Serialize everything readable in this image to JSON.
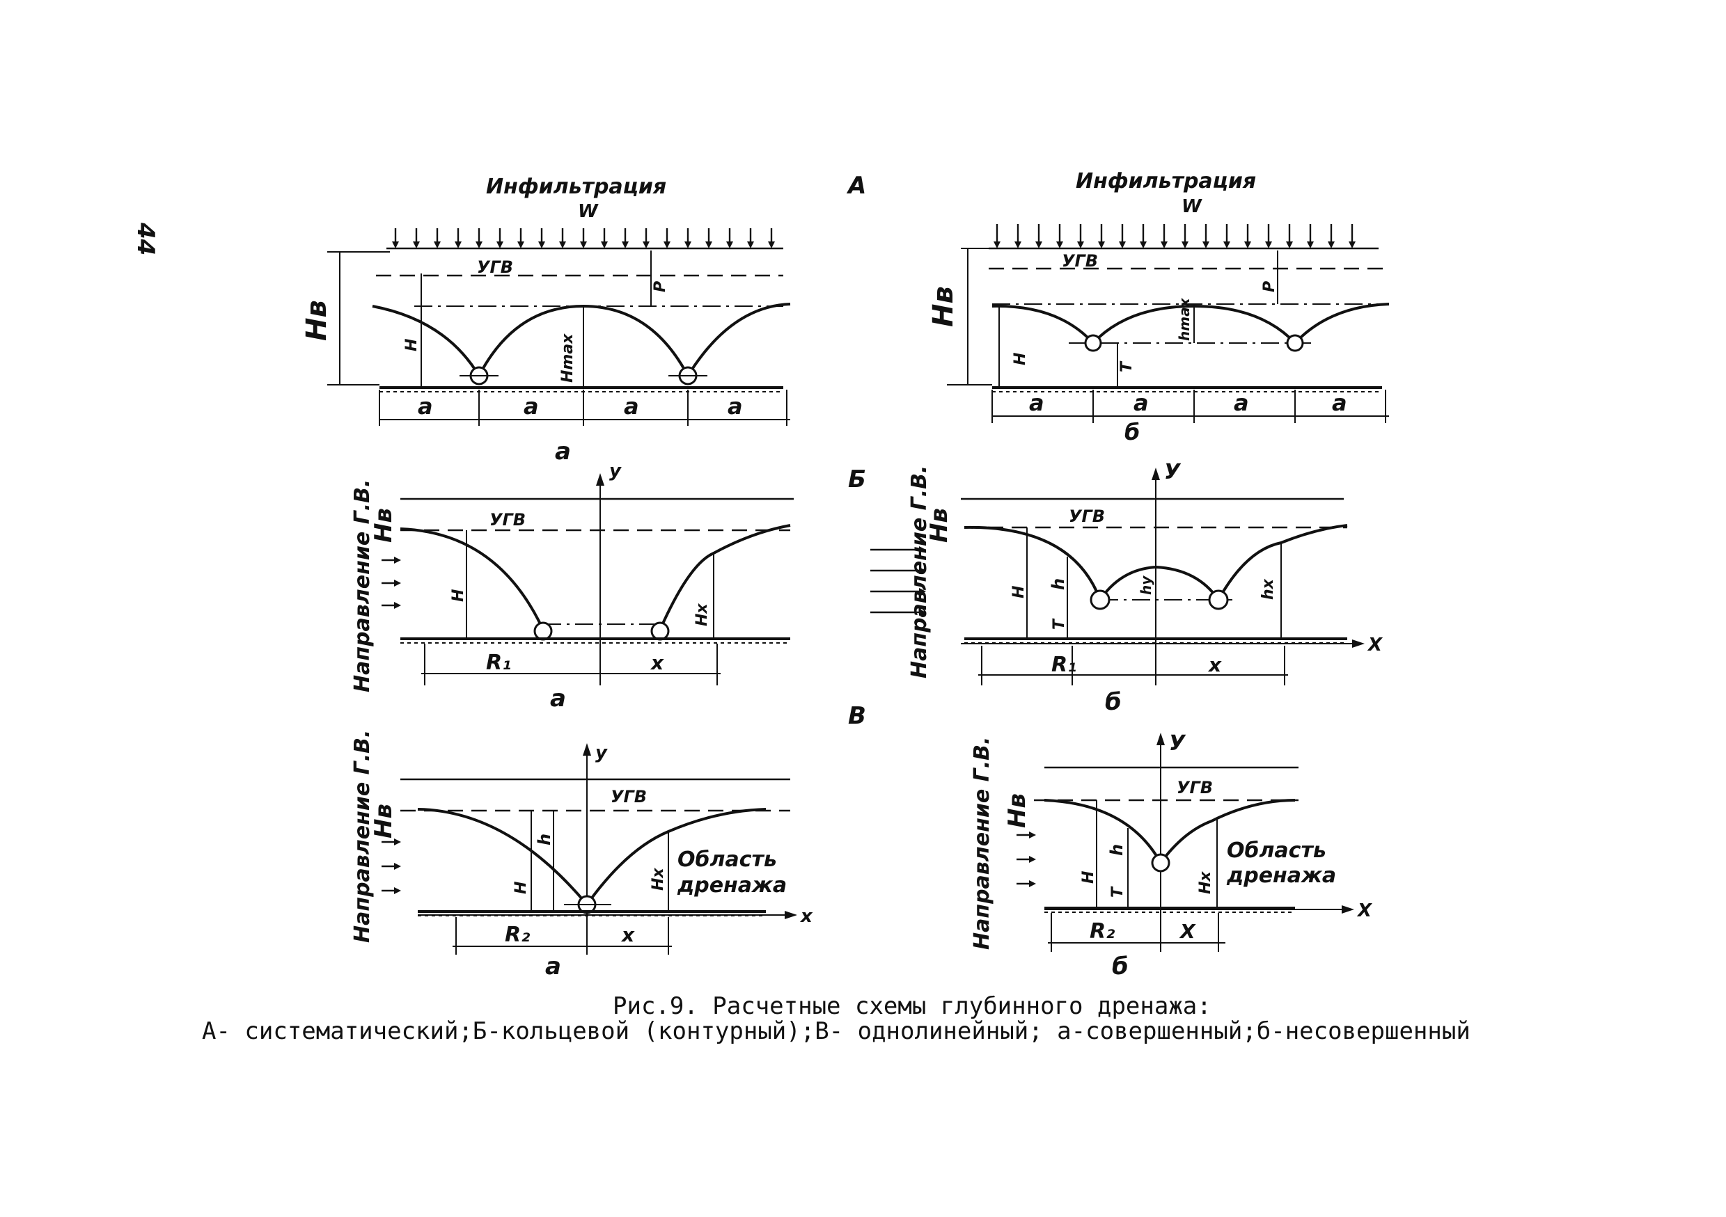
{
  "page_number": "44",
  "figure": {
    "caption_line1": "Рис.9. Расчетные схемы глубинного дренажа:",
    "caption_line2": "А- систематический;Б-кольцевой (контурный);В- однолинейный; а-совершенный;б-несовершенный"
  },
  "section_labels": {
    "A": "А",
    "B": "Б",
    "V": "В"
  },
  "labels": {
    "infiltration": "Инфильтрация",
    "w": "W",
    "ugv": "УГВ",
    "hb": "Hв",
    "h_cap": "H",
    "hmax": "Hmax",
    "hmax_small": "hmax",
    "p": "P",
    "a": "a",
    "T": "T",
    "h_small": "h",
    "hy": "hy",
    "hx_cap": "Hx",
    "hx_small": "hx",
    "r1": "R₁",
    "r2": "R₂",
    "x": "x",
    "X_cap": "X",
    "y_axis": "y",
    "Y_axis": "У",
    "gw_direction": "Направление Г.В.",
    "drain_area_1": "Область",
    "drain_area_2": "дренажа",
    "sub_a": "а",
    "sub_b": "б"
  }
}
